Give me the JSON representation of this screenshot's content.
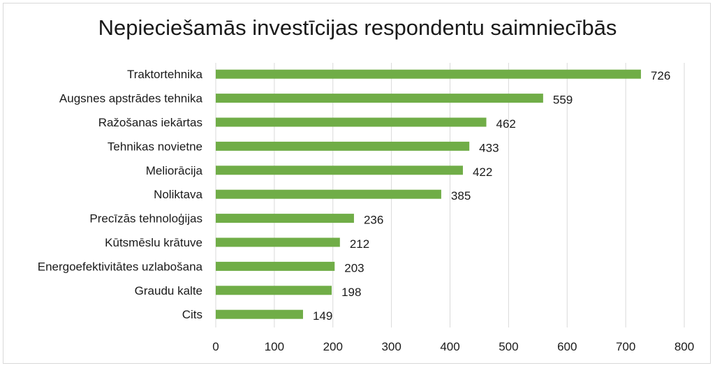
{
  "chart_data": {
    "type": "bar",
    "orientation": "horizontal",
    "title": "Nepieciešamās investīcijas respondentu saimniecībās",
    "categories": [
      "Traktortehnika",
      "Augsnes apstrādes tehnika",
      "Ražošanas iekārtas",
      "Tehnikas novietne",
      "Meliorācija",
      "Noliktava",
      "Precīzās tehnoloģijas",
      "Kūtsmēslu krātuve",
      "Energoefektivitātes uzlabošana",
      "Graudu kalte",
      "Cits"
    ],
    "values": [
      726,
      559,
      462,
      433,
      422,
      385,
      236,
      212,
      203,
      198,
      149
    ],
    "xlim": [
      0,
      800
    ],
    "xticks": [
      0,
      100,
      200,
      300,
      400,
      500,
      600,
      700,
      800
    ],
    "grid": "vertical",
    "legend": "none",
    "data_labels": true,
    "bar_color": "#70ad47",
    "grid_color": "#d9d9d9"
  }
}
